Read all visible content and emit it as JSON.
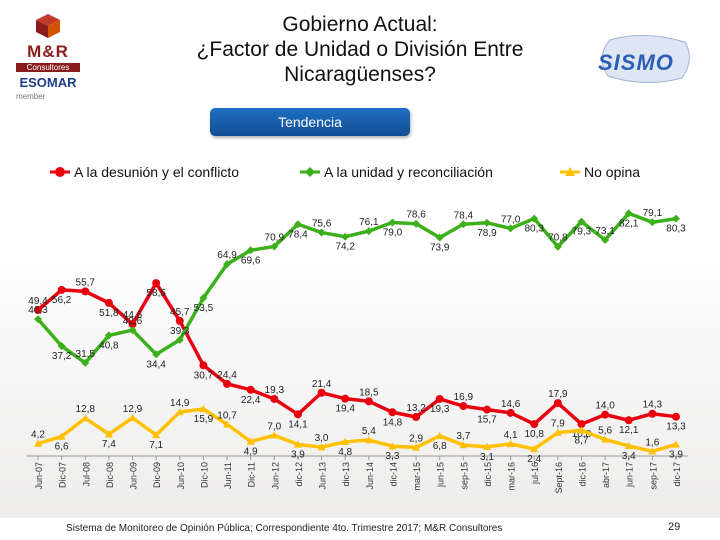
{
  "header": {
    "title_lines": [
      "Gobierno Actual:",
      "¿Factor de Unidad o División Entre",
      "Nicaragüenses?"
    ],
    "logo_left_brand": "M&R",
    "logo_left_sub": "Consultores",
    "logo_left_esomar": "ESOMAR",
    "logo_left_member": "member",
    "logo_right": "SISMO",
    "tab_label": "Tendencia"
  },
  "footer": {
    "text": "Sistema de Monitoreo de Opinión Pública; Correspondiente 4to. Trimestre 2017; M&R Consultores",
    "page": "29"
  },
  "chart_data": {
    "type": "line",
    "title": "Tendencia",
    "categories": [
      "Jun-07",
      "Dic-07",
      "Jul-08",
      "Dic-08",
      "Jun-09",
      "Dic-09",
      "Jun-10",
      "Dic-10",
      "Jun-11",
      "Dic-11",
      "Jun-12",
      "dic-12",
      "Jun-13",
      "dic-13",
      "Jun-14",
      "dic-14",
      "mar-15",
      "jun-15",
      "sep-15",
      "dic-15",
      "mar-16",
      "jul-16",
      "Sept-16",
      "dic-16",
      "abr-17",
      "jun-17",
      "sep-17",
      "dic-17"
    ],
    "series": [
      {
        "name": "A la desunión y el conflicto",
        "color": "#e8000f",
        "marker": "circle",
        "values": [
          49.4,
          56.2,
          55.7,
          51.8,
          44.6,
          58.5,
          45.7,
          30.7,
          24.4,
          22.4,
          19.3,
          14.1,
          21.4,
          19.4,
          18.5,
          14.8,
          13.2,
          19.3,
          16.9,
          15.7,
          14.6,
          10.8,
          17.9,
          10.8,
          14.0,
          12.1,
          14.3,
          13.3
        ],
        "labels": [
          "49,4",
          "56,2",
          "55,7",
          "51,8",
          "44,6",
          "58,5",
          "45,7",
          "30,7",
          "24,4",
          "22,4",
          "19,3",
          "14,1",
          "21,4",
          "19,4",
          "18,5",
          "14,8",
          "13,2",
          "19,3",
          "16,9",
          "15,7",
          "14,6",
          "10,8",
          "17,9",
          "10,8",
          "14,0",
          "12,1",
          "14,3",
          "13,3"
        ]
      },
      {
        "name": "A la unidad y reconciliación",
        "color": "#3cb01a",
        "marker": "diamond",
        "values": [
          46.3,
          37.2,
          31.5,
          40.8,
          42.6,
          34.4,
          39.3,
          53.5,
          64.9,
          69.6,
          70.9,
          78.4,
          75.6,
          74.2,
          76.1,
          79.0,
          78.6,
          73.9,
          78.4,
          78.9,
          77.0,
          80.3,
          70.8,
          79.3,
          73.1,
          82.1,
          79.1,
          80.3
        ],
        "labels": [
          "46,3",
          "37,2",
          "31,5",
          "40,8",
          "42,6",
          "34,4",
          "39,3",
          "53,5",
          "64,9",
          "69,6",
          "70,9",
          "78,4",
          "75,6",
          "74,2",
          "76,1",
          "79,0",
          "78,6",
          "73,9",
          "78,4",
          "78,9",
          "77,0",
          "80,3",
          "70,8",
          "79,3",
          "73,1",
          "82,1",
          "79,1",
          "80,3"
        ]
      },
      {
        "name": "No opina",
        "color": "#ffc000",
        "marker": "triangle",
        "values": [
          4.2,
          6.6,
          12.8,
          7.4,
          12.9,
          7.1,
          14.9,
          15.9,
          10.7,
          4.9,
          7.0,
          3.9,
          3.0,
          4.8,
          5.4,
          3.3,
          2.9,
          6.8,
          3.7,
          3.1,
          4.1,
          2.4,
          7.9,
          8.7,
          5.6,
          3.4,
          1.6,
          3.9
        ],
        "labels": [
          "4,2",
          "6,6",
          "12,8",
          "7,4",
          "12,9",
          "7,1",
          "14,9",
          "15,9",
          "10,7",
          "4,9",
          "7,0",
          "3,9",
          "3,0",
          "4,8",
          "5,4",
          "3,3",
          "2,9",
          "6,8",
          "3,7",
          "3,1",
          "4,1",
          "2,4",
          "7,9",
          "8,7",
          "5,6",
          "3,4",
          "1,6",
          "3,9"
        ]
      }
    ],
    "ylim": [
      0,
      90
    ],
    "grid": false,
    "legend": "top"
  }
}
